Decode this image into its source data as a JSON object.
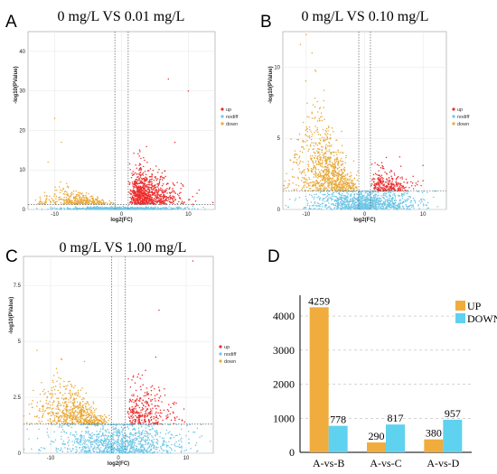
{
  "panel_letters": [
    "A",
    "B",
    "C",
    "D"
  ],
  "colors": {
    "up": "#ee2c2c",
    "nodiff": "#6ec6e6",
    "down": "#e8a838",
    "bar_up": "#f0ac3c",
    "bar_down": "#5ed2ee"
  },
  "chart_data": [
    {
      "type": "scatter",
      "panel": "A",
      "title": "0 mg/L VS 0.01 mg/L",
      "xlabel": "log2(FC)",
      "ylabel": "-log10(PValue)",
      "xlim": [
        -14,
        14
      ],
      "ylim": [
        0,
        45
      ],
      "xticks": [
        -10,
        0,
        10
      ],
      "yticks": [
        0,
        10,
        20,
        30,
        40
      ],
      "legend": [
        "up",
        "nodiff",
        "down"
      ],
      "thresholds": {
        "x": [
          -1,
          1
        ],
        "y": 1.3
      }
    },
    {
      "type": "scatter",
      "panel": "B",
      "title": "0 mg/L VS 0.10 mg/L",
      "xlabel": "log2(FC)",
      "ylabel": "-log10(PValue)",
      "xlim": [
        -14,
        14
      ],
      "ylim": [
        0,
        12.5
      ],
      "xticks": [
        -10,
        0,
        10
      ],
      "yticks": [
        0,
        5,
        10
      ],
      "legend": [
        "up",
        "nodiff",
        "down"
      ],
      "thresholds": {
        "x": [
          -1,
          1
        ],
        "y": 1.3
      }
    },
    {
      "type": "scatter",
      "panel": "C",
      "title": "0 mg/L VS 1.00 mg/L",
      "xlabel": "log2(FC)",
      "ylabel": "-log10(PValue)",
      "xlim": [
        -14,
        14
      ],
      "ylim": [
        0,
        8.8
      ],
      "xticks": [
        -10,
        0,
        10
      ],
      "yticks": [
        0,
        2.5,
        5,
        7.5
      ],
      "legend": [
        "up",
        "nodiff",
        "down"
      ],
      "thresholds": {
        "x": [
          -1,
          1
        ],
        "y": 1.3
      }
    },
    {
      "type": "bar",
      "panel": "D",
      "categories": [
        "A-vs-B",
        "A-vs-C",
        "A-vs-D"
      ],
      "series": [
        {
          "name": "UP",
          "values": [
            4259,
            290,
            380
          ]
        },
        {
          "name": "DOWN",
          "values": [
            778,
            817,
            957
          ]
        }
      ],
      "ylim": [
        0,
        4400
      ],
      "yticks": [
        0,
        1000,
        2000,
        3000,
        4000
      ],
      "grid": true,
      "legend_position": "top-right"
    }
  ]
}
